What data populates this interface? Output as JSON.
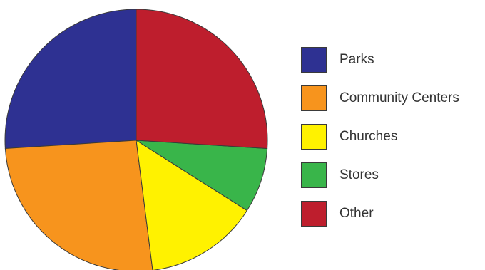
{
  "chart_data": {
    "type": "pie",
    "categories": [
      "Parks",
      "Community Centers",
      "Churches",
      "Stores",
      "Other"
    ],
    "values": [
      26,
      26,
      14,
      8,
      26
    ],
    "colors": [
      "#2e3192",
      "#f7941d",
      "#fff200",
      "#39b54a",
      "#be1e2d"
    ],
    "title": "",
    "legend_placement": "right",
    "start_angle": "12 o'clock, slices drawn counter-clockwise starting with Parks"
  },
  "legend": {
    "items": [
      {
        "label": "Parks",
        "color": "#2e3192"
      },
      {
        "label": "Community Centers",
        "color": "#f7941d"
      },
      {
        "label": "Churches",
        "color": "#fff200"
      },
      {
        "label": "Stores",
        "color": "#39b54a"
      },
      {
        "label": "Other",
        "color": "#be1e2d"
      }
    ]
  }
}
